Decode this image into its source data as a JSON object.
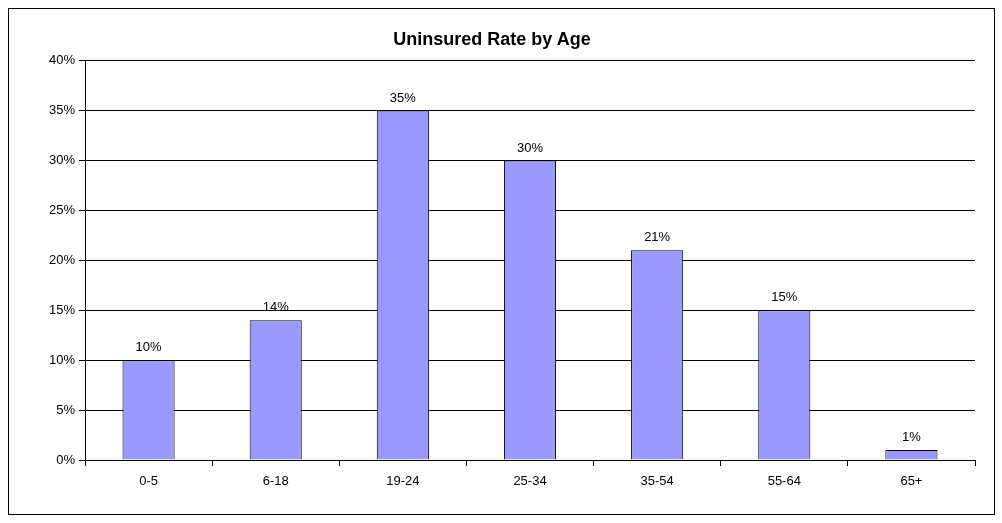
{
  "chart_data": {
    "type": "bar",
    "title": "Uninsured Rate by Age",
    "categories": [
      "0-5",
      "6-18",
      "19-24",
      "25-34",
      "35-54",
      "55-64",
      "65+"
    ],
    "values": [
      10,
      14,
      35,
      30,
      21,
      15,
      1
    ],
    "value_labels": [
      "10%",
      "14%",
      "35%",
      "30%",
      "21%",
      "15%",
      "1%"
    ],
    "color": "#9999ff",
    "ylim": [
      0,
      40
    ],
    "yticks": [
      {
        "value": 0,
        "label": "0%"
      },
      {
        "value": 5,
        "label": "5%"
      },
      {
        "value": 10,
        "label": "10%"
      },
      {
        "value": 15,
        "label": "15%"
      },
      {
        "value": 20,
        "label": "20%"
      },
      {
        "value": 25,
        "label": "25%"
      },
      {
        "value": 30,
        "label": "30%"
      },
      {
        "value": 35,
        "label": "35%"
      },
      {
        "value": 40,
        "label": "40%"
      }
    ],
    "grid": "y"
  }
}
